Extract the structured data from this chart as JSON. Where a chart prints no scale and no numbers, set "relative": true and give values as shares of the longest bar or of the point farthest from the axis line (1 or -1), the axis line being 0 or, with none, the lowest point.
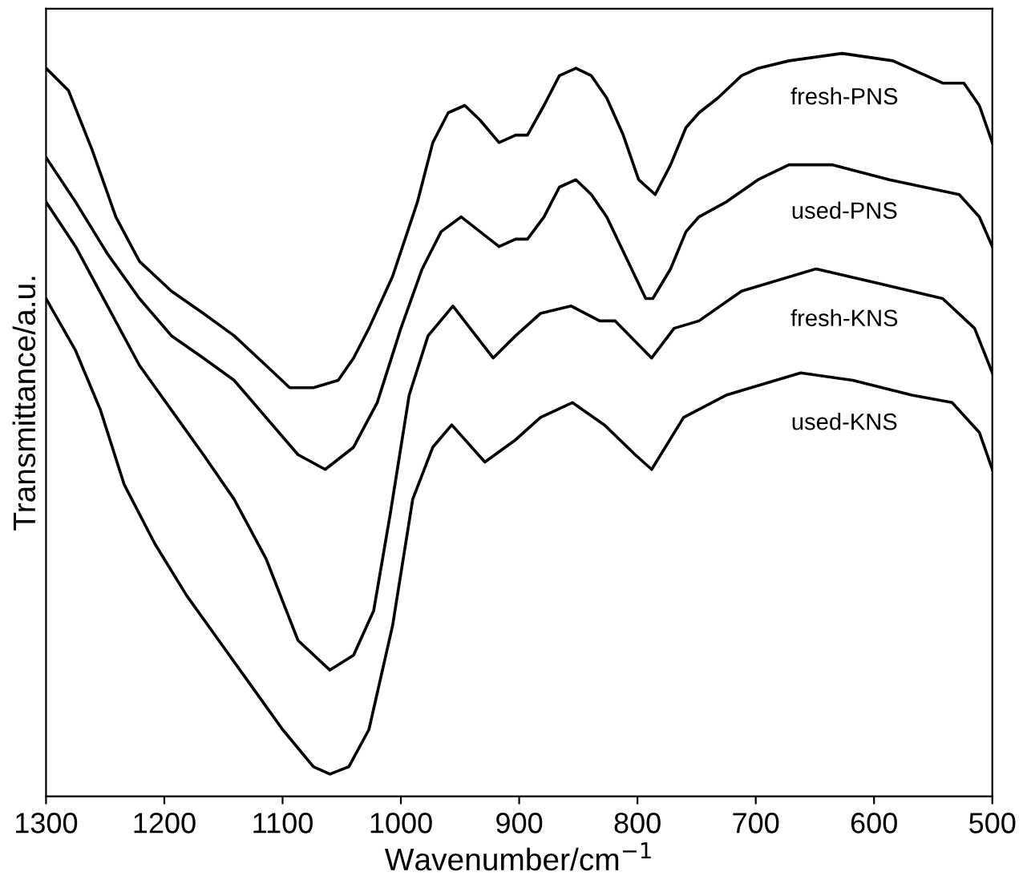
{
  "chart_data": {
    "type": "line",
    "relative": true,
    "xlabel": "Wavenumber/cm$^{−1}$",
    "ylabel": "Transmittance/a.u.",
    "xlim": [
      1300,
      500
    ],
    "xticks": [
      1300,
      1200,
      1100,
      1000,
      900,
      800,
      700,
      600,
      500
    ],
    "grid": false,
    "legend": false,
    "marker": "none",
    "line_style": "solid",
    "series": [
      {
        "name": "fresh-PNS",
        "color": "#000000",
        "x": [
          1300,
          1281,
          1261,
          1241,
          1221,
          1194,
          1167,
          1141,
          1114,
          1094,
          1074,
          1053,
          1040,
          1027,
          1007,
          986,
          973,
          960,
          946,
          933,
          917,
          903,
          893,
          879,
          866,
          852,
          839,
          826,
          812,
          799,
          785,
          772,
          759,
          748,
          732,
          712,
          698,
          672,
          627,
          584,
          542,
          524,
          511,
          500
        ],
        "values": [
          0.98,
          0.95,
          0.87,
          0.78,
          0.72,
          0.68,
          0.65,
          0.62,
          0.58,
          0.55,
          0.55,
          0.56,
          0.59,
          0.63,
          0.7,
          0.8,
          0.88,
          0.92,
          0.93,
          0.91,
          0.88,
          0.89,
          0.89,
          0.93,
          0.97,
          0.98,
          0.97,
          0.94,
          0.89,
          0.83,
          0.81,
          0.85,
          0.9,
          0.92,
          0.94,
          0.97,
          0.98,
          0.99,
          1.0,
          0.99,
          0.96,
          0.96,
          0.93,
          0.88
        ]
      },
      {
        "name": "used-PNS",
        "color": "#000000",
        "x": [
          1300,
          1275,
          1248,
          1221,
          1194,
          1167,
          1141,
          1114,
          1087,
          1064,
          1040,
          1020,
          1000,
          982,
          966,
          949,
          933,
          917,
          903,
          893,
          879,
          866,
          852,
          839,
          826,
          808,
          793,
          787,
          772,
          759,
          748,
          725,
          698,
          672,
          635,
          587,
          528,
          511,
          500
        ],
        "values": [
          0.86,
          0.8,
          0.73,
          0.67,
          0.62,
          0.59,
          0.56,
          0.51,
          0.46,
          0.44,
          0.47,
          0.53,
          0.63,
          0.71,
          0.76,
          0.78,
          0.76,
          0.74,
          0.75,
          0.75,
          0.78,
          0.82,
          0.83,
          0.81,
          0.78,
          0.72,
          0.67,
          0.67,
          0.71,
          0.76,
          0.78,
          0.8,
          0.83,
          0.85,
          0.85,
          0.83,
          0.81,
          0.78,
          0.74
        ]
      },
      {
        "name": "fresh-KNS",
        "color": "#000000",
        "x": [
          1300,
          1275,
          1248,
          1221,
          1194,
          1167,
          1141,
          1114,
          1087,
          1060,
          1040,
          1023,
          1009,
          993,
          977,
          956,
          922,
          903,
          882,
          856,
          832,
          819,
          788,
          769,
          748,
          712,
          649,
          595,
          542,
          515,
          500
        ],
        "values": [
          0.8,
          0.74,
          0.66,
          0.58,
          0.52,
          0.46,
          0.4,
          0.32,
          0.21,
          0.17,
          0.19,
          0.25,
          0.38,
          0.54,
          0.62,
          0.66,
          0.59,
          0.62,
          0.65,
          0.66,
          0.64,
          0.64,
          0.59,
          0.63,
          0.64,
          0.68,
          0.71,
          0.69,
          0.67,
          0.63,
          0.57
        ]
      },
      {
        "name": "used-KNS",
        "color": "#000000",
        "x": [
          1300,
          1275,
          1254,
          1234,
          1208,
          1181,
          1154,
          1127,
          1100,
          1074,
          1060,
          1044,
          1027,
          1007,
          990,
          973,
          957,
          929,
          903,
          882,
          855,
          828,
          802,
          788,
          761,
          725,
          662,
          618,
          568,
          534,
          511,
          500
        ],
        "values": [
          0.67,
          0.6,
          0.52,
          0.42,
          0.34,
          0.27,
          0.21,
          0.15,
          0.09,
          0.04,
          0.03,
          0.04,
          0.09,
          0.23,
          0.4,
          0.47,
          0.5,
          0.45,
          0.48,
          0.51,
          0.53,
          0.5,
          0.46,
          0.44,
          0.51,
          0.54,
          0.57,
          0.56,
          0.54,
          0.53,
          0.49,
          0.44
        ]
      }
    ]
  }
}
